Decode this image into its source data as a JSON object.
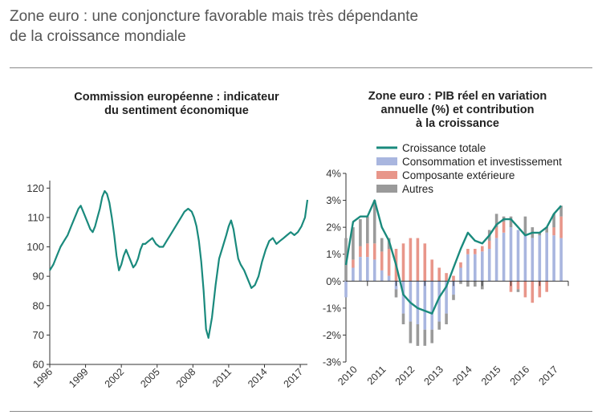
{
  "header": {
    "title_line1": "Zone euro : une conjoncture favorable mais très dépendante",
    "title_line2": "de la croissance mondiale"
  },
  "colors": {
    "line": "#1a8a7d",
    "consommation": "#a9b6df",
    "exterieure": "#e8968a",
    "autres": "#9a9a9a",
    "axis": "#333333",
    "rule": "#8a8a8a"
  },
  "chart_data": [
    {
      "type": "line",
      "title_line1": "Commission européenne : indicateur",
      "title_line2": "du sentiment économique",
      "x_tick_labels": [
        "1996",
        "1999",
        "2002",
        "2005",
        "2008",
        "2011",
        "2014",
        "2017"
      ],
      "x_ticks": [
        1996,
        1999,
        2002,
        2005,
        2008,
        2011,
        2014,
        2017
      ],
      "xlim": [
        1996,
        2017.6
      ],
      "y_ticks": [
        60,
        70,
        80,
        90,
        100,
        110,
        120
      ],
      "ylim": [
        60,
        122
      ],
      "grid": false,
      "series": [
        {
          "x": [
            1996.0,
            1996.3,
            1996.6,
            1996.9,
            1997.2,
            1997.5,
            1997.8,
            1998.0,
            1998.2,
            1998.4,
            1998.6,
            1998.8,
            1999.0,
            1999.2,
            1999.4,
            1999.6,
            1999.8,
            2000.0,
            2000.2,
            2000.4,
            2000.6,
            2000.8,
            2001.0,
            2001.2,
            2001.4,
            2001.6,
            2001.8,
            2002.0,
            2002.2,
            2002.4,
            2002.6,
            2002.8,
            2003.0,
            2003.2,
            2003.4,
            2003.6,
            2003.8,
            2004.0,
            2004.3,
            2004.6,
            2004.9,
            2005.2,
            2005.5,
            2005.8,
            2006.1,
            2006.4,
            2006.7,
            2007.0,
            2007.3,
            2007.6,
            2007.9,
            2008.1,
            2008.3,
            2008.5,
            2008.7,
            2008.9,
            2009.1,
            2009.3,
            2009.6,
            2009.9,
            2010.2,
            2010.5,
            2010.8,
            2011.0,
            2011.2,
            2011.4,
            2011.6,
            2011.8,
            2012.0,
            2012.3,
            2012.6,
            2012.9,
            2013.2,
            2013.5,
            2013.8,
            2014.1,
            2014.4,
            2014.7,
            2015.0,
            2015.3,
            2015.6,
            2015.9,
            2016.2,
            2016.5,
            2016.8,
            2017.1,
            2017.4,
            2017.6
          ],
          "values": [
            92,
            94,
            97,
            100,
            102,
            104,
            107,
            109,
            111,
            113,
            114,
            112,
            110,
            108,
            106,
            105,
            107,
            110,
            113,
            117,
            119,
            118,
            115,
            110,
            104,
            97,
            92,
            94,
            97,
            99,
            97,
            95,
            93,
            94,
            96,
            99,
            101,
            101,
            102,
            103,
            101,
            100,
            100,
            102,
            104,
            106,
            108,
            110,
            112,
            113,
            112,
            110,
            107,
            102,
            95,
            85,
            72,
            69,
            76,
            87,
            96,
            100,
            104,
            107,
            109,
            106,
            101,
            96,
            94,
            92,
            89,
            86,
            87,
            90,
            95,
            99,
            102,
            103,
            101,
            102,
            103,
            104,
            105,
            104,
            105,
            107,
            110,
            116
          ]
        }
      ]
    },
    {
      "type": "bar",
      "title_line1": "Zone euro : PIB réel en variation",
      "title_line2": "annuelle (%) et contribution",
      "title_line3": "à la croissance",
      "ylim": [
        -3,
        4
      ],
      "y_ticks": [
        -3,
        -2,
        -1,
        0,
        1,
        2,
        3,
        4
      ],
      "y_tick_labels": [
        "-3%",
        "-2%",
        "-1%",
        "0%",
        "1%",
        "2%",
        "3%",
        "4%"
      ],
      "x_tick_labels": [
        "2010",
        "2011",
        "2012",
        "2013",
        "2014",
        "2015",
        "2016",
        "2017"
      ],
      "xlim": [
        2010,
        2017.75
      ],
      "grid": false,
      "legend_position": "top-left",
      "legend": [
        {
          "label": "Croissance totale",
          "key": "total",
          "kind": "line"
        },
        {
          "label": "Consommation et investissement",
          "key": "consommation",
          "kind": "box"
        },
        {
          "label": "Composante extérieure",
          "key": "exterieure",
          "kind": "box"
        },
        {
          "label": "Autres",
          "key": "autres",
          "kind": "box"
        }
      ],
      "quarters": [
        "2010T1",
        "2010T2",
        "2010T3",
        "2010T4",
        "2011T1",
        "2011T2",
        "2011T3",
        "2011T4",
        "2012T1",
        "2012T2",
        "2012T3",
        "2012T4",
        "2013T1",
        "2013T2",
        "2013T3",
        "2013T4",
        "2014T1",
        "2014T2",
        "2014T3",
        "2014T4",
        "2015T1",
        "2015T2",
        "2015T3",
        "2015T4",
        "2016T1",
        "2016T2",
        "2016T3",
        "2016T4",
        "2017T1",
        "2017T2",
        "2017T3"
      ],
      "quarter_x": [
        2010.0,
        2010.25,
        2010.5,
        2010.75,
        2011.0,
        2011.25,
        2011.5,
        2011.75,
        2012.0,
        2012.25,
        2012.5,
        2012.75,
        2013.0,
        2013.25,
        2013.5,
        2013.75,
        2014.0,
        2014.25,
        2014.5,
        2014.75,
        2015.0,
        2015.25,
        2015.5,
        2015.75,
        2016.0,
        2016.25,
        2016.5,
        2016.75,
        2017.0,
        2017.25,
        2017.5
      ],
      "series": [
        {
          "name": "Consommation et investissement",
          "key": "consommation",
          "values": [
            -0.6,
            0.5,
            0.9,
            0.9,
            0.8,
            0.4,
            0.2,
            -0.3,
            -1.2,
            -1.5,
            -1.6,
            -1.8,
            -1.8,
            -1.5,
            -1.2,
            -0.5,
            0.5,
            1.0,
            1.0,
            1.1,
            1.2,
            1.6,
            1.8,
            2.0,
            1.9,
            1.7,
            1.6,
            1.7,
            1.8,
            1.7,
            1.6
          ]
        },
        {
          "name": "Composante extérieure",
          "key": "exterieure",
          "values": [
            0.0,
            0.3,
            0.4,
            0.5,
            0.6,
            0.7,
            1.0,
            1.2,
            1.4,
            1.6,
            1.6,
            1.4,
            0.8,
            0.5,
            0.3,
            0.2,
            0.2,
            0.2,
            0.2,
            0.2,
            0.3,
            0.4,
            0.4,
            -0.4,
            -0.3,
            -0.6,
            -0.8,
            -0.6,
            -0.4,
            0.3,
            0.8
          ]
        },
        {
          "name": "Autres",
          "key": "autres",
          "values": [
            1.6,
            1.2,
            1.0,
            1.0,
            1.6,
            0.5,
            0.4,
            -0.3,
            -0.4,
            -0.8,
            -0.8,
            -0.6,
            -0.5,
            -0.3,
            -0.4,
            -0.2,
            -0.1,
            -0.2,
            -0.2,
            -0.3,
            0.4,
            0.5,
            0.2,
            0.4,
            -0.1,
            0.7,
            0.4,
            0.1,
            0.2,
            0.5,
            0.4
          ]
        },
        {
          "name": "Croissance totale",
          "key": "total",
          "values": [
            0.6,
            2.2,
            2.4,
            2.4,
            3.0,
            2.0,
            1.5,
            0.6,
            -0.5,
            -0.8,
            -1.0,
            -1.1,
            -1.2,
            -0.6,
            -0.2,
            0.5,
            1.2,
            1.8,
            1.5,
            1.4,
            1.7,
            2.1,
            2.3,
            2.3,
            2.0,
            1.7,
            1.8,
            1.8,
            2.0,
            2.5,
            2.8
          ]
        }
      ]
    }
  ]
}
